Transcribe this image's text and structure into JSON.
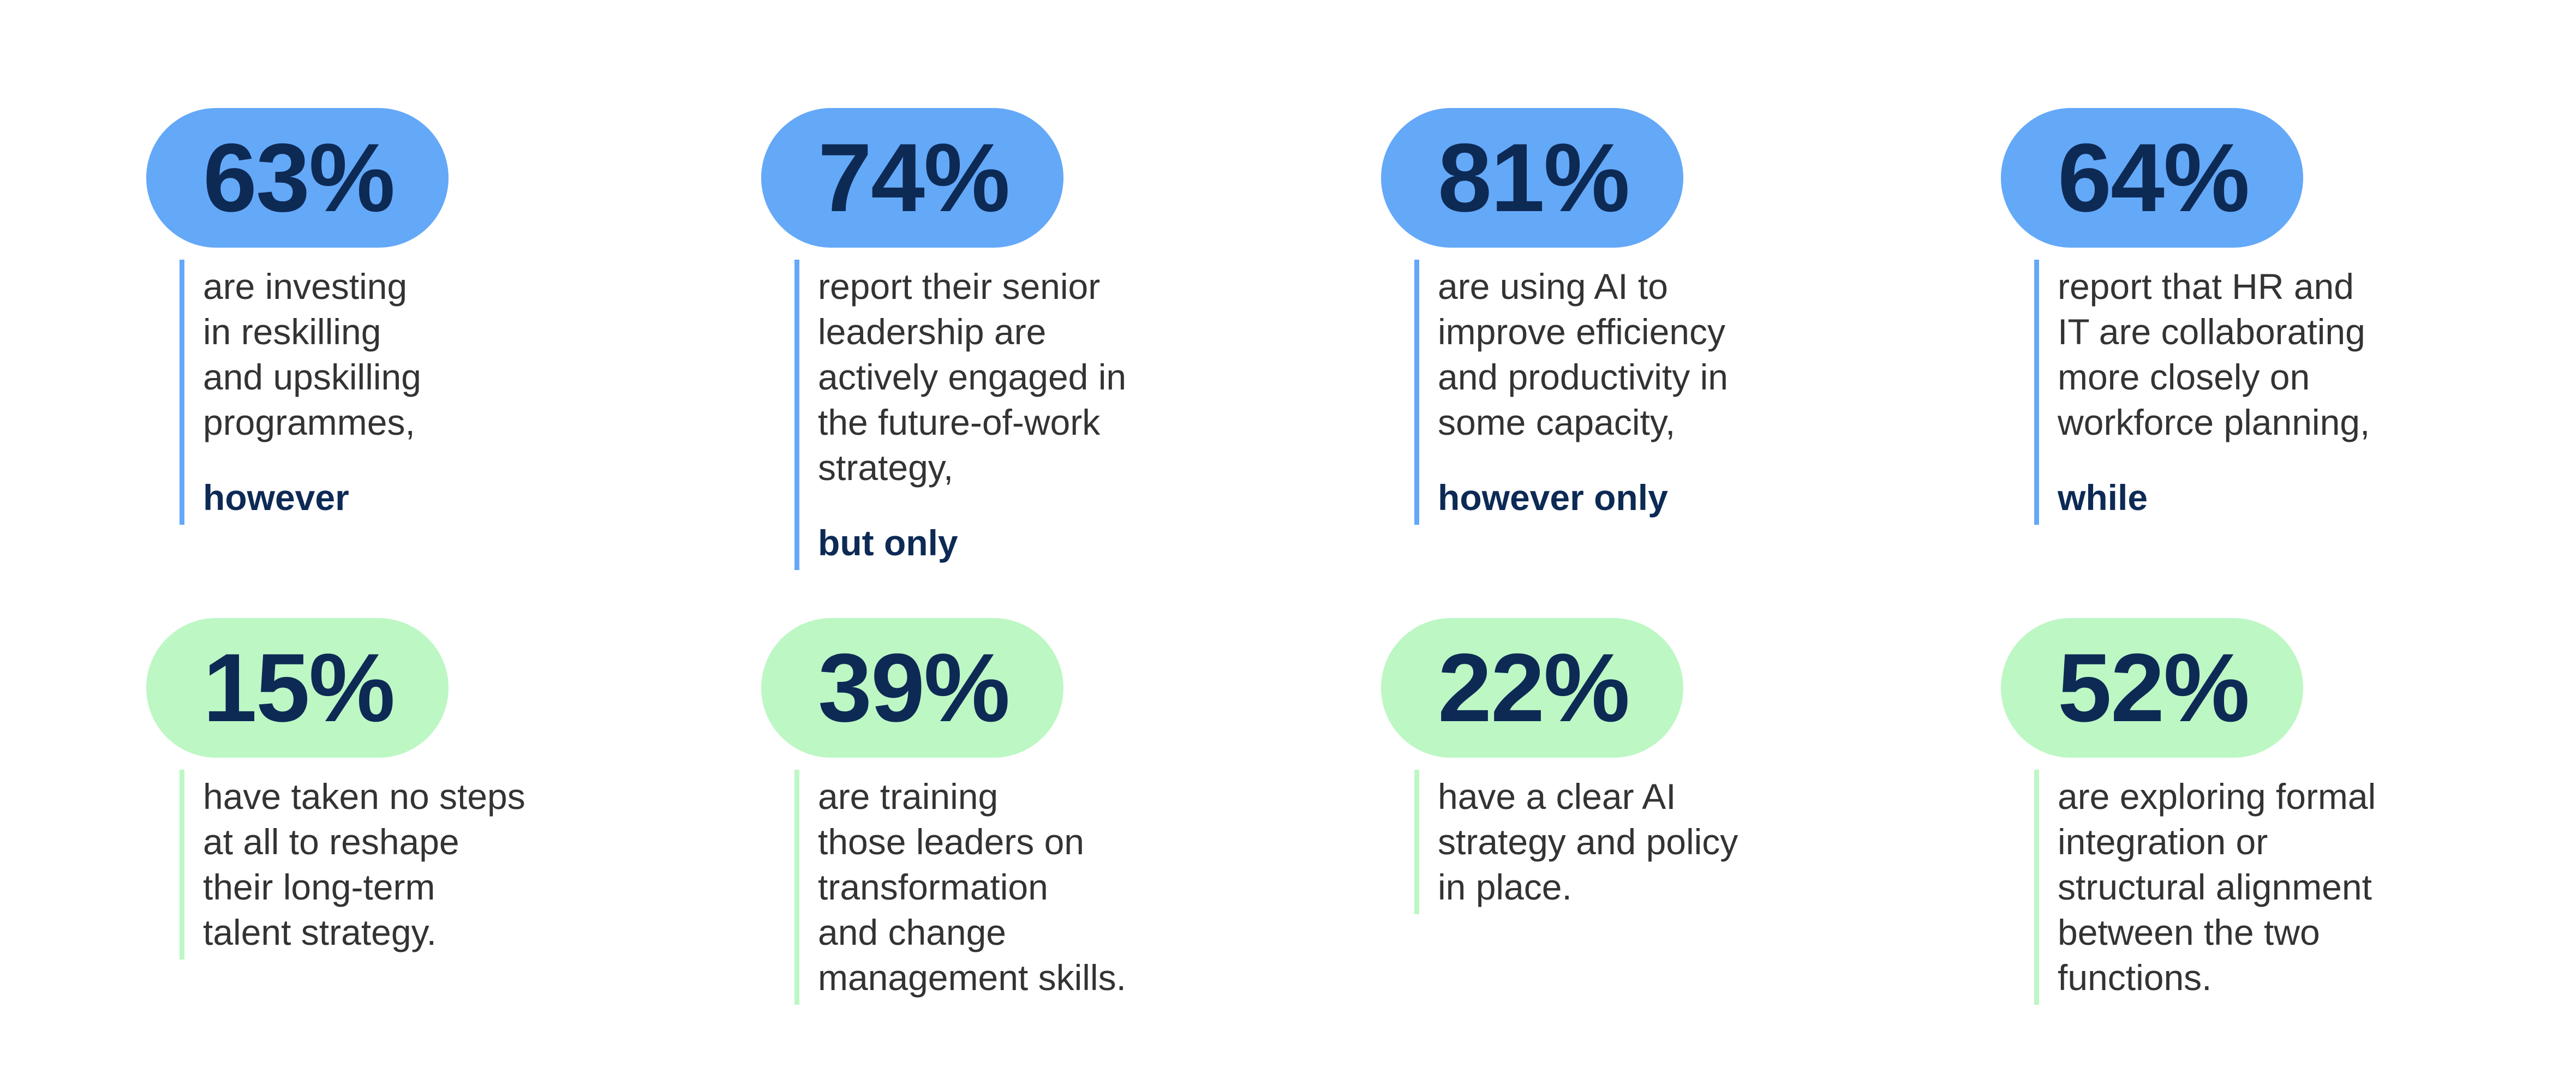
{
  "columns": [
    {
      "top": {
        "stat": "63%",
        "lines": [
          "are investing",
          "in reskilling",
          "and upskilling",
          "programmes,"
        ],
        "connector": "however"
      },
      "bottom": {
        "stat": "15%",
        "lines": [
          "have taken no steps",
          "at all to reshape",
          "their long-term",
          "talent strategy."
        ]
      }
    },
    {
      "top": {
        "stat": "74%",
        "lines": [
          "report their senior",
          "leadership are",
          "actively engaged in",
          "the future-of-work",
          "strategy,"
        ],
        "connector": "but only"
      },
      "bottom": {
        "stat": "39%",
        "lines": [
          "are training",
          "those leaders on",
          "transformation",
          "and change",
          "management skills."
        ]
      }
    },
    {
      "top": {
        "stat": "81%",
        "lines": [
          "are using AI to",
          "improve efficiency",
          "and productivity in",
          "some capacity,"
        ],
        "connector": "however only"
      },
      "bottom": {
        "stat": "22%",
        "lines": [
          "have a clear AI",
          "strategy and policy",
          "in place."
        ]
      }
    },
    {
      "top": {
        "stat": "64%",
        "lines": [
          "report that HR and",
          "IT are collaborating",
          "more closely on",
          "workforce planning,"
        ],
        "connector": "while"
      },
      "bottom": {
        "stat": "52%",
        "lines": [
          "are exploring formal",
          "integration or",
          "structural alignment",
          "between the two",
          "functions."
        ]
      }
    }
  ]
}
